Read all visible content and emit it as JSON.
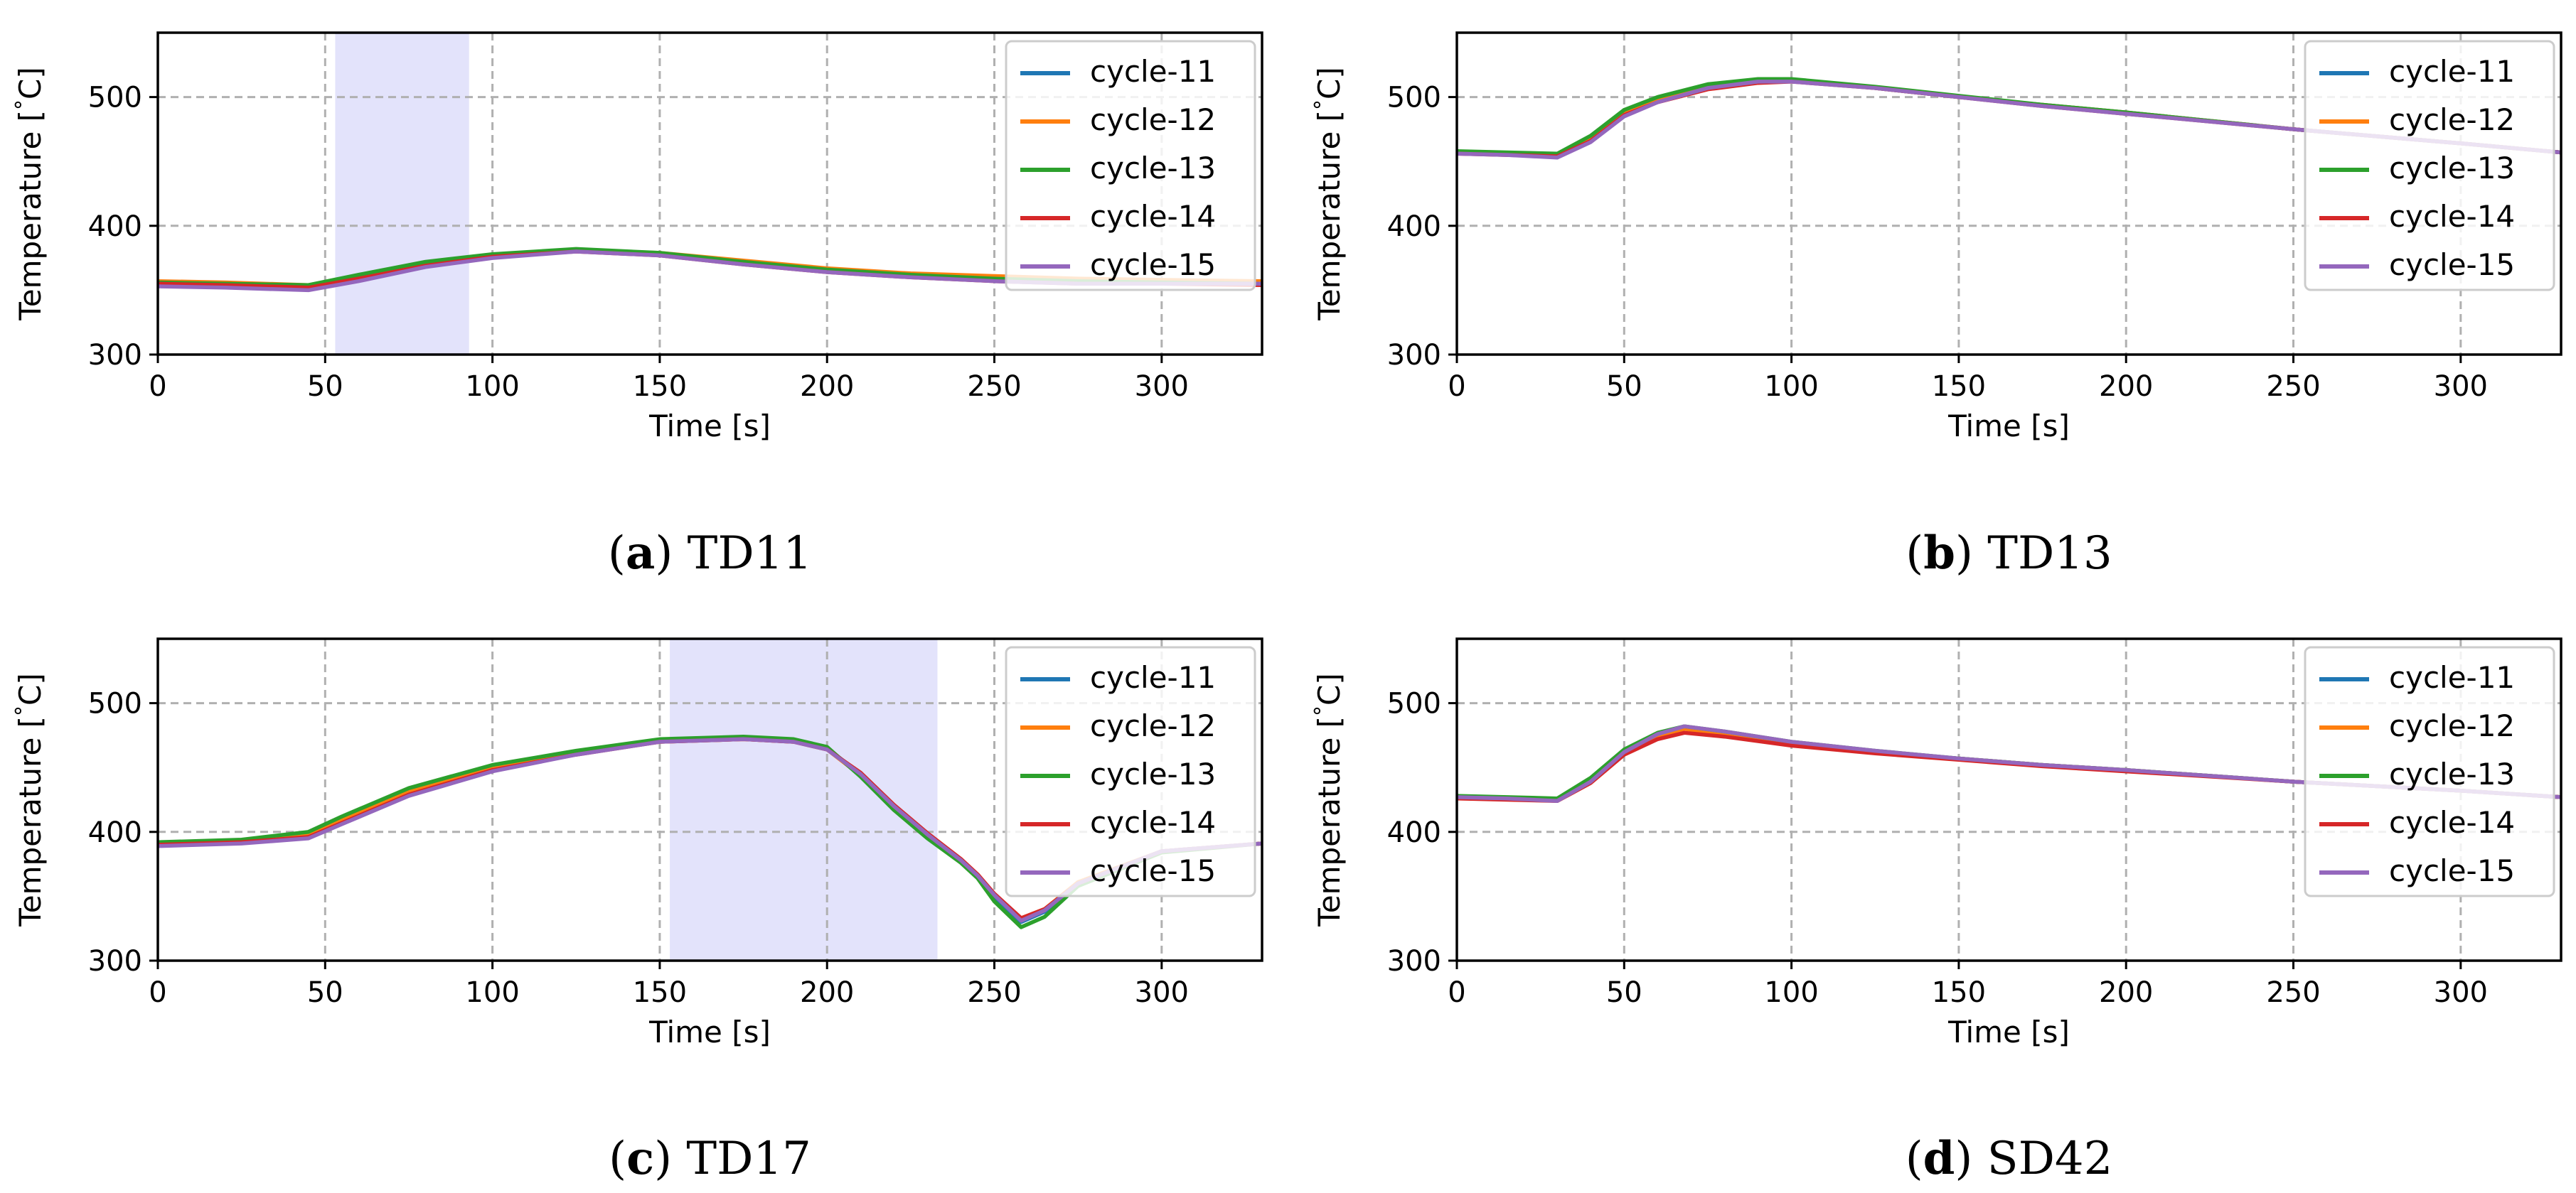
{
  "chart_data": [
    {
      "type": "line",
      "subplot": "a",
      "caption_letter": "a",
      "caption_text": "TD11",
      "xlabel": "Time [s]",
      "ylabel": "Temperature [$^\\circ$C]",
      "ylabel_parts": {
        "prefix": "Temperature [",
        "degree": "°",
        "suffix": "C]"
      },
      "xlim": [
        0,
        330
      ],
      "ylim": [
        300,
        550
      ],
      "xticks": [
        0,
        50,
        100,
        150,
        200,
        250,
        300
      ],
      "yticks": [
        300,
        400,
        500
      ],
      "xtick_labels": [
        "0",
        "50",
        "100",
        "150",
        "200",
        "250",
        "300"
      ],
      "ytick_labels": [
        "300",
        "400",
        "500"
      ],
      "grid": true,
      "legend_position": "top-right",
      "highlight": {
        "x0": 53,
        "x1": 93,
        "color": "#e3e3fb"
      },
      "series": [
        {
          "name": "cycle-11",
          "color": "#1f77b4",
          "x": [
            0,
            20,
            45,
            60,
            80,
            100,
            125,
            150,
            175,
            200,
            225,
            250,
            275,
            300,
            330
          ],
          "y": [
            356,
            355,
            353,
            360,
            370,
            377,
            381,
            378,
            371,
            365,
            361,
            359,
            357,
            357,
            356
          ]
        },
        {
          "name": "cycle-12",
          "color": "#ff7f0e",
          "x": [
            0,
            20,
            45,
            60,
            80,
            100,
            125,
            150,
            175,
            200,
            225,
            250,
            275,
            300,
            330
          ],
          "y": [
            357,
            356,
            354,
            361,
            371,
            377,
            381,
            379,
            373,
            367,
            363,
            361,
            359,
            358,
            357
          ]
        },
        {
          "name": "cycle-13",
          "color": "#2ca02c",
          "x": [
            0,
            20,
            45,
            60,
            80,
            100,
            125,
            150,
            175,
            200,
            225,
            250,
            275,
            300,
            330
          ],
          "y": [
            356,
            355,
            354,
            362,
            372,
            378,
            382,
            379,
            372,
            366,
            362,
            359,
            357,
            356,
            355
          ]
        },
        {
          "name": "cycle-14",
          "color": "#d62728",
          "x": [
            0,
            20,
            45,
            60,
            80,
            100,
            125,
            150,
            175,
            200,
            225,
            250,
            275,
            300,
            330
          ],
          "y": [
            355,
            354,
            352,
            359,
            369,
            376,
            380,
            377,
            370,
            364,
            360,
            357,
            355,
            355,
            354
          ]
        },
        {
          "name": "cycle-15",
          "color": "#9467bd",
          "x": [
            0,
            20,
            45,
            60,
            80,
            100,
            125,
            150,
            175,
            200,
            225,
            250,
            275,
            300,
            330
          ],
          "y": [
            353,
            352,
            350,
            357,
            368,
            375,
            380,
            377,
            370,
            364,
            360,
            357,
            355,
            355,
            355
          ]
        }
      ]
    },
    {
      "type": "line",
      "subplot": "b",
      "caption_letter": "b",
      "caption_text": "TD13",
      "xlabel": "Time [s]",
      "ylabel": "Temperature [$^\\circ$C]",
      "ylabel_parts": {
        "prefix": "Temperature [",
        "degree": "°",
        "suffix": "C]"
      },
      "xlim": [
        0,
        330
      ],
      "ylim": [
        300,
        550
      ],
      "xticks": [
        0,
        50,
        100,
        150,
        200,
        250,
        300
      ],
      "yticks": [
        300,
        400,
        500
      ],
      "xtick_labels": [
        "0",
        "50",
        "100",
        "150",
        "200",
        "250",
        "300"
      ],
      "ytick_labels": [
        "300",
        "400",
        "500"
      ],
      "grid": true,
      "legend_position": "top-right",
      "highlight": null,
      "series": [
        {
          "name": "cycle-11",
          "color": "#1f77b4",
          "x": [
            0,
            15,
            30,
            40,
            50,
            60,
            75,
            90,
            100,
            125,
            150,
            175,
            200,
            250,
            300,
            330
          ],
          "y": [
            457,
            456,
            455,
            468,
            488,
            498,
            508,
            513,
            513,
            507,
            500,
            494,
            488,
            475,
            464,
            457
          ]
        },
        {
          "name": "cycle-12",
          "color": "#ff7f0e",
          "x": [
            0,
            15,
            30,
            40,
            50,
            60,
            75,
            90,
            100,
            125,
            150,
            175,
            200,
            250,
            300,
            330
          ],
          "y": [
            457,
            456,
            455,
            468,
            488,
            498,
            508,
            513,
            513,
            507,
            500,
            494,
            488,
            475,
            464,
            457
          ]
        },
        {
          "name": "cycle-13",
          "color": "#2ca02c",
          "x": [
            0,
            15,
            30,
            40,
            50,
            60,
            75,
            90,
            100,
            125,
            150,
            175,
            200,
            250,
            300,
            330
          ],
          "y": [
            458,
            457,
            456,
            470,
            490,
            500,
            510,
            514,
            514,
            508,
            501,
            494,
            488,
            475,
            464,
            457
          ]
        },
        {
          "name": "cycle-14",
          "color": "#d62728",
          "x": [
            0,
            15,
            30,
            40,
            50,
            60,
            75,
            90,
            100,
            125,
            150,
            175,
            200,
            250,
            300,
            330
          ],
          "y": [
            456,
            455,
            454,
            466,
            486,
            496,
            506,
            511,
            512,
            507,
            500,
            493,
            487,
            475,
            464,
            457
          ]
        },
        {
          "name": "cycle-15",
          "color": "#9467bd",
          "x": [
            0,
            15,
            30,
            40,
            50,
            60,
            75,
            90,
            100,
            125,
            150,
            175,
            200,
            250,
            300,
            330
          ],
          "y": [
            456,
            455,
            453,
            465,
            485,
            496,
            507,
            512,
            512,
            507,
            500,
            493,
            487,
            475,
            464,
            457
          ]
        }
      ]
    },
    {
      "type": "line",
      "subplot": "c",
      "caption_letter": "c",
      "caption_text": "TD17",
      "xlabel": "Time [s]",
      "ylabel": "Temperature [$^\\circ$C]",
      "ylabel_parts": {
        "prefix": "Temperature [",
        "degree": "°",
        "suffix": "C]"
      },
      "xlim": [
        0,
        330
      ],
      "ylim": [
        300,
        550
      ],
      "xticks": [
        0,
        50,
        100,
        150,
        200,
        250,
        300
      ],
      "yticks": [
        300,
        400,
        500
      ],
      "xtick_labels": [
        "0",
        "50",
        "100",
        "150",
        "200",
        "250",
        "300"
      ],
      "ytick_labels": [
        "300",
        "400",
        "500"
      ],
      "grid": true,
      "legend_position": "top-right",
      "highlight": {
        "x0": 153,
        "x1": 233,
        "color": "#e3e3fb"
      },
      "series": [
        {
          "name": "cycle-11",
          "color": "#1f77b4",
          "x": [
            0,
            25,
            45,
            55,
            75,
            100,
            125,
            150,
            175,
            190,
            200,
            210,
            220,
            230,
            240,
            245,
            250,
            258,
            265,
            275,
            300,
            330
          ],
          "y": [
            391,
            393,
            398,
            410,
            432,
            450,
            462,
            471,
            473,
            471,
            465,
            445,
            420,
            398,
            378,
            366,
            350,
            330,
            338,
            360,
            385,
            391
          ]
        },
        {
          "name": "cycle-12",
          "color": "#ff7f0e",
          "x": [
            0,
            25,
            45,
            55,
            75,
            100,
            125,
            150,
            175,
            190,
            200,
            210,
            220,
            230,
            240,
            245,
            250,
            258,
            265,
            275,
            300,
            330
          ],
          "y": [
            391,
            393,
            398,
            409,
            431,
            449,
            461,
            470,
            472,
            470,
            464,
            444,
            419,
            397,
            377,
            366,
            351,
            333,
            340,
            361,
            385,
            391
          ]
        },
        {
          "name": "cycle-13",
          "color": "#2ca02c",
          "x": [
            0,
            25,
            45,
            55,
            75,
            100,
            125,
            150,
            175,
            190,
            200,
            210,
            220,
            230,
            240,
            245,
            250,
            258,
            265,
            275,
            300,
            330
          ],
          "y": [
            392,
            394,
            400,
            412,
            434,
            452,
            463,
            472,
            474,
            472,
            466,
            443,
            417,
            395,
            376,
            364,
            346,
            326,
            334,
            358,
            384,
            391
          ]
        },
        {
          "name": "cycle-14",
          "color": "#d62728",
          "x": [
            0,
            25,
            45,
            55,
            75,
            100,
            125,
            150,
            175,
            190,
            200,
            210,
            220,
            230,
            240,
            245,
            250,
            258,
            265,
            275,
            300,
            330
          ],
          "y": [
            390,
            392,
            396,
            407,
            429,
            448,
            460,
            470,
            472,
            470,
            464,
            446,
            421,
            399,
            379,
            367,
            352,
            333,
            340,
            360,
            385,
            391
          ]
        },
        {
          "name": "cycle-15",
          "color": "#9467bd",
          "x": [
            0,
            25,
            45,
            55,
            75,
            100,
            125,
            150,
            175,
            190,
            200,
            210,
            220,
            230,
            240,
            245,
            250,
            258,
            265,
            275,
            300,
            330
          ],
          "y": [
            389,
            391,
            395,
            406,
            428,
            447,
            460,
            470,
            472,
            470,
            464,
            445,
            420,
            398,
            378,
            366,
            351,
            331,
            339,
            360,
            385,
            391
          ]
        }
      ]
    },
    {
      "type": "line",
      "subplot": "d",
      "caption_letter": "d",
      "caption_text": "SD42",
      "xlabel": "Time [s]",
      "ylabel": "Temperature [$^\\circ$C]",
      "ylabel_parts": {
        "prefix": "Temperature [",
        "degree": "°",
        "suffix": "C]"
      },
      "xlim": [
        0,
        330
      ],
      "ylim": [
        300,
        550
      ],
      "xticks": [
        0,
        50,
        100,
        150,
        200,
        250,
        300
      ],
      "yticks": [
        300,
        400,
        500
      ],
      "xtick_labels": [
        "0",
        "50",
        "100",
        "150",
        "200",
        "250",
        "300"
      ],
      "ytick_labels": [
        "300",
        "400",
        "500"
      ],
      "grid": true,
      "legend_position": "top-right",
      "highlight": null,
      "series": [
        {
          "name": "cycle-11",
          "color": "#1f77b4",
          "x": [
            0,
            15,
            30,
            40,
            50,
            60,
            68,
            80,
            100,
            125,
            150,
            175,
            200,
            250,
            300,
            330
          ],
          "y": [
            427,
            426,
            425,
            440,
            462,
            475,
            481,
            477,
            469,
            462,
            457,
            452,
            448,
            439,
            432,
            427
          ]
        },
        {
          "name": "cycle-12",
          "color": "#ff7f0e",
          "x": [
            0,
            15,
            30,
            40,
            50,
            60,
            68,
            80,
            100,
            125,
            150,
            175,
            200,
            250,
            300,
            330
          ],
          "y": [
            427,
            426,
            425,
            440,
            462,
            475,
            480,
            476,
            469,
            462,
            457,
            452,
            448,
            439,
            432,
            427
          ]
        },
        {
          "name": "cycle-13",
          "color": "#2ca02c",
          "x": [
            0,
            15,
            30,
            40,
            50,
            60,
            68,
            80,
            100,
            125,
            150,
            175,
            200,
            250,
            300,
            330
          ],
          "y": [
            428,
            427,
            426,
            442,
            464,
            477,
            482,
            478,
            470,
            463,
            457,
            452,
            448,
            439,
            432,
            427
          ]
        },
        {
          "name": "cycle-14",
          "color": "#d62728",
          "x": [
            0,
            15,
            30,
            40,
            50,
            60,
            68,
            80,
            100,
            125,
            150,
            175,
            200,
            250,
            300,
            330
          ],
          "y": [
            426,
            425,
            424,
            438,
            460,
            472,
            477,
            474,
            467,
            461,
            456,
            451,
            447,
            439,
            432,
            427
          ]
        },
        {
          "name": "cycle-15",
          "color": "#9467bd",
          "x": [
            0,
            15,
            30,
            40,
            50,
            60,
            68,
            80,
            100,
            125,
            150,
            175,
            200,
            250,
            300,
            330
          ],
          "y": [
            427,
            426,
            424,
            439,
            462,
            476,
            482,
            478,
            470,
            463,
            457,
            452,
            448,
            439,
            432,
            427
          ]
        }
      ]
    }
  ]
}
